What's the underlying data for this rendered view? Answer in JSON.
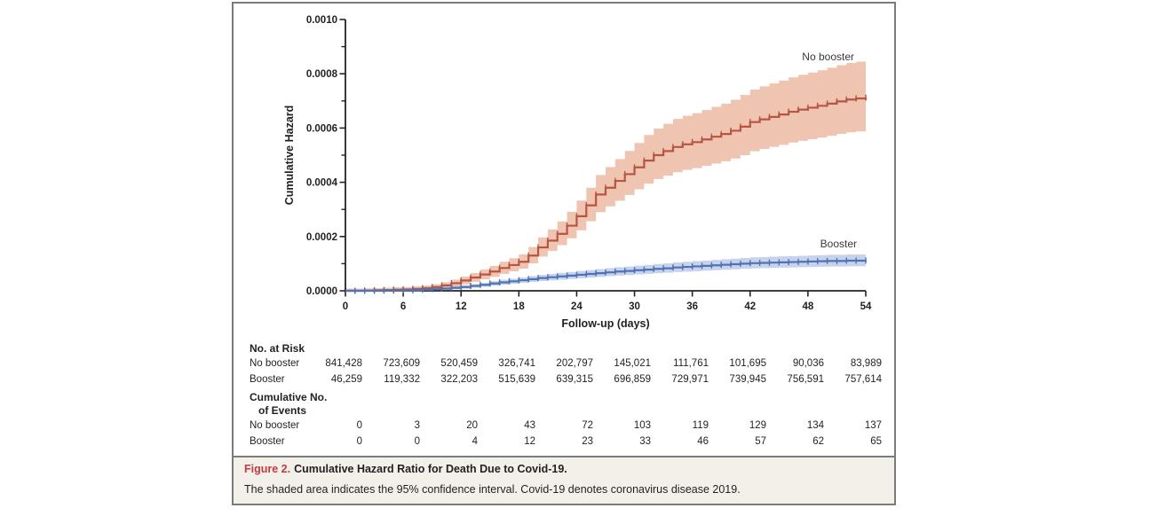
{
  "figure": {
    "caption": {
      "label": "Figure 2.",
      "title": "Cumulative Hazard Ratio for Death Due to Covid-19.",
      "body": "The shaded area indicates the 95% confidence interval. Covid-19 denotes coronavirus disease 2019.",
      "label_color": "#c03a44",
      "panel_bg": "#f3f0e9"
    },
    "risk_table": {
      "heading": "No. at Risk",
      "rows": [
        {
          "label": "No booster",
          "values": [
            "841,428",
            "723,609",
            "520,459",
            "326,741",
            "202,797",
            "145,021",
            "111,761",
            "101,695",
            "90,036",
            "83,989"
          ]
        },
        {
          "label": "Booster",
          "values": [
            "46,259",
            "119,332",
            "322,203",
            "515,639",
            "639,315",
            "696,859",
            "729,971",
            "739,945",
            "756,591",
            "757,614"
          ]
        }
      ]
    },
    "events_table": {
      "heading_line1": "Cumulative No.",
      "heading_line2": "of Events",
      "rows": [
        {
          "label": "No booster",
          "values": [
            "0",
            "3",
            "20",
            "43",
            "72",
            "103",
            "119",
            "129",
            "134",
            "137"
          ]
        },
        {
          "label": "Booster",
          "values": [
            "0",
            "0",
            "4",
            "12",
            "23",
            "33",
            "46",
            "57",
            "62",
            "65"
          ]
        }
      ]
    }
  },
  "chart_data": {
    "type": "line",
    "subtype": "step-cumulative-hazard-with-ci-bands",
    "title": "",
    "xlabel": "Follow-up (days)",
    "ylabel": "Cumulative Hazard",
    "xlim": [
      0,
      54
    ],
    "ylim": [
      0,
      0.001
    ],
    "xticks": [
      0,
      6,
      12,
      18,
      24,
      30,
      36,
      42,
      48,
      54
    ],
    "yticks": [
      "0.0000",
      "0.0002",
      "0.0004",
      "0.0006",
      "0.0008",
      "0.0010"
    ],
    "y_minor_tick_step": 0.0001,
    "grid": false,
    "legend_position": "labels-at-line-ends",
    "axis_color": "#262223",
    "series": [
      {
        "name": "No booster",
        "color": "#b85442",
        "band_color": "#efc4b1",
        "ci_hi_mult": 1.18,
        "ci_hi_add": 8e-06,
        "ci_lo_mult": 0.84,
        "ci_lo_add": -8e-06,
        "points": [
          [
            0,
            0
          ],
          [
            1,
            0
          ],
          [
            2,
            1e-06
          ],
          [
            3,
            2e-06
          ],
          [
            4,
            3e-06
          ],
          [
            5,
            4e-06
          ],
          [
            6,
            5e-06
          ],
          [
            7,
            7e-06
          ],
          [
            8,
            1e-05
          ],
          [
            9,
            1.4e-05
          ],
          [
            10,
            2e-05
          ],
          [
            11,
            2.8e-05
          ],
          [
            12,
            3.8e-05
          ],
          [
            13,
            4.9e-05
          ],
          [
            14,
            6e-05
          ],
          [
            15,
            7.1e-05
          ],
          [
            16,
            8.4e-05
          ],
          [
            17,
            9.5e-05
          ],
          [
            18,
            0.000107
          ],
          [
            19,
            0.00013
          ],
          [
            20,
            0.00016
          ],
          [
            21,
            0.000185
          ],
          [
            22,
            0.00021
          ],
          [
            23,
            0.00024
          ],
          [
            24,
            0.000275
          ],
          [
            25,
            0.000315
          ],
          [
            26,
            0.000355
          ],
          [
            27,
            0.00038
          ],
          [
            28,
            0.000405
          ],
          [
            29,
            0.00043
          ],
          [
            30,
            0.000455
          ],
          [
            31,
            0.00048
          ],
          [
            32,
            0.0005
          ],
          [
            33,
            0.000515
          ],
          [
            34,
            0.00053
          ],
          [
            35,
            0.00054
          ],
          [
            36,
            0.000548
          ],
          [
            37,
            0.000558
          ],
          [
            38,
            0.000568
          ],
          [
            39,
            0.000578
          ],
          [
            40,
            0.00059
          ],
          [
            41,
            0.000605
          ],
          [
            42,
            0.000622
          ],
          [
            43,
            0.000632
          ],
          [
            44,
            0.000641
          ],
          [
            45,
            0.00065
          ],
          [
            46,
            0.00066
          ],
          [
            47,
            0.000668
          ],
          [
            48,
            0.000675
          ],
          [
            49,
            0.000682
          ],
          [
            50,
            0.00069
          ],
          [
            51,
            0.000698
          ],
          [
            52,
            0.000705
          ],
          [
            53,
            0.000709
          ],
          [
            54,
            0.000712
          ]
        ]
      },
      {
        "name": "Booster",
        "color": "#5073b6",
        "band_color": "#c7d2eb",
        "ci_hi_mult": 1.17,
        "ci_hi_add": 4e-06,
        "ci_lo_mult": 0.85,
        "ci_lo_add": -4e-06,
        "points": [
          [
            0,
            0
          ],
          [
            2,
            0
          ],
          [
            4,
            1e-06
          ],
          [
            6,
            2e-06
          ],
          [
            8,
            4e-06
          ],
          [
            9,
            6e-06
          ],
          [
            10,
            8e-06
          ],
          [
            11,
            1.1e-05
          ],
          [
            12,
            1.4e-05
          ],
          [
            13,
            1.8e-05
          ],
          [
            14,
            2.2e-05
          ],
          [
            15,
            2.7e-05
          ],
          [
            16,
            3.1e-05
          ],
          [
            17,
            3.5e-05
          ],
          [
            18,
            3.9e-05
          ],
          [
            19,
            4.3e-05
          ],
          [
            20,
            4.7e-05
          ],
          [
            21,
            5e-05
          ],
          [
            22,
            5.3e-05
          ],
          [
            23,
            5.6e-05
          ],
          [
            24,
            5.9e-05
          ],
          [
            25,
            6.2e-05
          ],
          [
            26,
            6.5e-05
          ],
          [
            27,
            6.8e-05
          ],
          [
            28,
            7.1e-05
          ],
          [
            29,
            7.3e-05
          ],
          [
            30,
            7.6e-05
          ],
          [
            31,
            7.8e-05
          ],
          [
            32,
            8.1e-05
          ],
          [
            33,
            8.3e-05
          ],
          [
            34,
            8.6e-05
          ],
          [
            35,
            8.8e-05
          ],
          [
            36,
            9e-05
          ],
          [
            37,
            9.2e-05
          ],
          [
            38,
            9.4e-05
          ],
          [
            39,
            9.6e-05
          ],
          [
            40,
            9.8e-05
          ],
          [
            41,
            0.0001
          ],
          [
            42,
            0.000102
          ],
          [
            43,
            0.000103
          ],
          [
            44,
            0.000104
          ],
          [
            45,
            0.000105
          ],
          [
            46,
            0.000106
          ],
          [
            47,
            0.000107
          ],
          [
            48,
            0.000108
          ],
          [
            49,
            0.000109
          ],
          [
            50,
            0.00011
          ],
          [
            51,
            0.00011
          ],
          [
            52,
            0.000111
          ],
          [
            53,
            0.000111
          ],
          [
            54,
            0.000112
          ]
        ]
      }
    ]
  }
}
